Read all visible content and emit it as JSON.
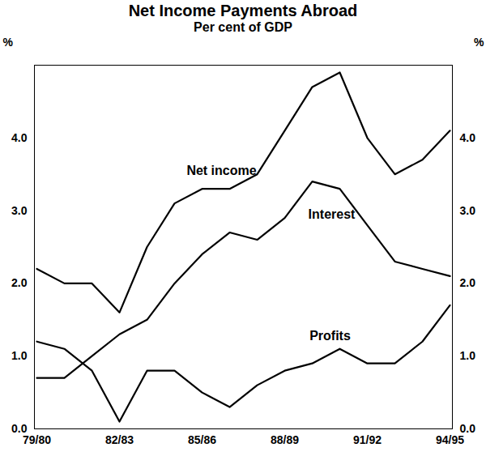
{
  "chart_data": {
    "type": "line",
    "title": "Net Income Payments Abroad",
    "subtitle": "Per cent of GDP",
    "y_label": "%",
    "categories": [
      "79/80",
      null,
      null,
      "82/83",
      null,
      null,
      "85/86",
      null,
      null,
      "88/89",
      null,
      null,
      "91/92",
      null,
      null,
      "94/95"
    ],
    "series": [
      {
        "name": "Net income",
        "color": "#000000",
        "values": [
          2.2,
          2.0,
          2.0,
          1.6,
          2.5,
          3.1,
          3.3,
          3.3,
          3.5,
          4.1,
          4.7,
          4.9,
          4.0,
          3.5,
          3.7,
          4.1
        ]
      },
      {
        "name": "Interest",
        "color": "#000000",
        "values": [
          0.7,
          0.7,
          1.0,
          1.3,
          1.5,
          2.0,
          2.4,
          2.7,
          2.6,
          2.9,
          3.4,
          3.3,
          2.8,
          2.3,
          2.2,
          2.1
        ]
      },
      {
        "name": "Profits",
        "color": "#000000",
        "values": [
          1.2,
          1.1,
          0.8,
          0.1,
          0.8,
          0.8,
          0.5,
          0.3,
          0.6,
          0.8,
          0.9,
          1.1,
          0.9,
          0.9,
          1.2,
          1.7
        ]
      }
    ],
    "ylim": [
      0,
      5
    ],
    "yticks": [
      0,
      1,
      2,
      3,
      4
    ],
    "grid": false
  }
}
